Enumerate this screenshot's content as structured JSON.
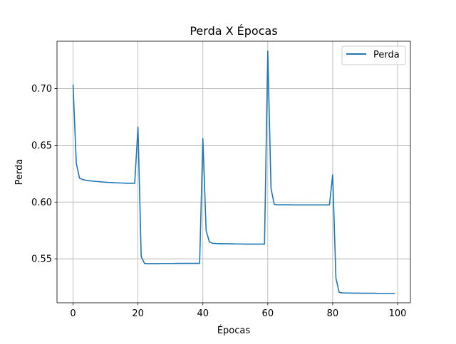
{
  "chart_data": {
    "type": "line",
    "title": "Perda X Épocas",
    "xlabel": "Épocas",
    "ylabel": "Perda",
    "xlim": [
      -4.95,
      103.95
    ],
    "ylim": [
      0.5113,
      0.7417
    ],
    "x_ticks": [
      0,
      20,
      40,
      60,
      80,
      100
    ],
    "y_ticks": [
      0.55,
      0.6,
      0.65,
      0.7
    ],
    "x_tick_labels": [
      "0",
      "20",
      "40",
      "60",
      "80",
      "100"
    ],
    "y_tick_labels": [
      "0.55",
      "0.60",
      "0.65",
      "0.70"
    ],
    "grid": true,
    "legend_position": "upper right",
    "series": [
      {
        "name": "Perda",
        "color": "#1f77b4",
        "x": [
          0,
          1,
          2,
          3,
          4,
          5,
          6,
          7,
          8,
          9,
          10,
          11,
          12,
          13,
          14,
          15,
          16,
          17,
          18,
          19,
          20,
          21,
          22,
          23,
          24,
          25,
          26,
          27,
          28,
          29,
          30,
          31,
          32,
          33,
          34,
          35,
          36,
          37,
          38,
          39,
          40,
          41,
          42,
          43,
          44,
          45,
          46,
          47,
          48,
          49,
          50,
          51,
          52,
          53,
          54,
          55,
          56,
          57,
          58,
          59,
          60,
          61,
          62,
          63,
          64,
          65,
          66,
          67,
          68,
          69,
          70,
          71,
          72,
          73,
          74,
          75,
          76,
          77,
          78,
          79,
          80,
          81,
          82,
          83,
          84,
          85,
          86,
          87,
          88,
          89,
          90,
          91,
          92,
          93,
          94,
          95,
          96,
          97,
          98,
          99
        ],
        "y": [
          0.703,
          0.634,
          0.621,
          0.6198,
          0.6192,
          0.6188,
          0.6185,
          0.6182,
          0.618,
          0.6177,
          0.6175,
          0.6173,
          0.6172,
          0.617,
          0.6169,
          0.6168,
          0.6167,
          0.6166,
          0.6166,
          0.6165,
          0.666,
          0.552,
          0.546,
          0.5458,
          0.5458,
          0.5458,
          0.5458,
          0.5459,
          0.5459,
          0.5459,
          0.5459,
          0.5459,
          0.546,
          0.546,
          0.546,
          0.546,
          0.546,
          0.546,
          0.546,
          0.546,
          0.656,
          0.575,
          0.565,
          0.5637,
          0.5635,
          0.5634,
          0.5633,
          0.5633,
          0.5632,
          0.5632,
          0.5631,
          0.5631,
          0.5631,
          0.563,
          0.563,
          0.563,
          0.563,
          0.563,
          0.563,
          0.563,
          0.733,
          0.612,
          0.598,
          0.5976,
          0.5976,
          0.5976,
          0.5976,
          0.5976,
          0.5975,
          0.5975,
          0.5975,
          0.5975,
          0.5975,
          0.5975,
          0.5975,
          0.5975,
          0.5975,
          0.5975,
          0.5975,
          0.5975,
          0.624,
          0.533,
          0.5205,
          0.52,
          0.5199,
          0.5199,
          0.5198,
          0.5198,
          0.5198,
          0.5197,
          0.5197,
          0.5197,
          0.5197,
          0.5197,
          0.5196,
          0.5196,
          0.5196,
          0.5196,
          0.5196,
          0.5196
        ]
      }
    ]
  }
}
